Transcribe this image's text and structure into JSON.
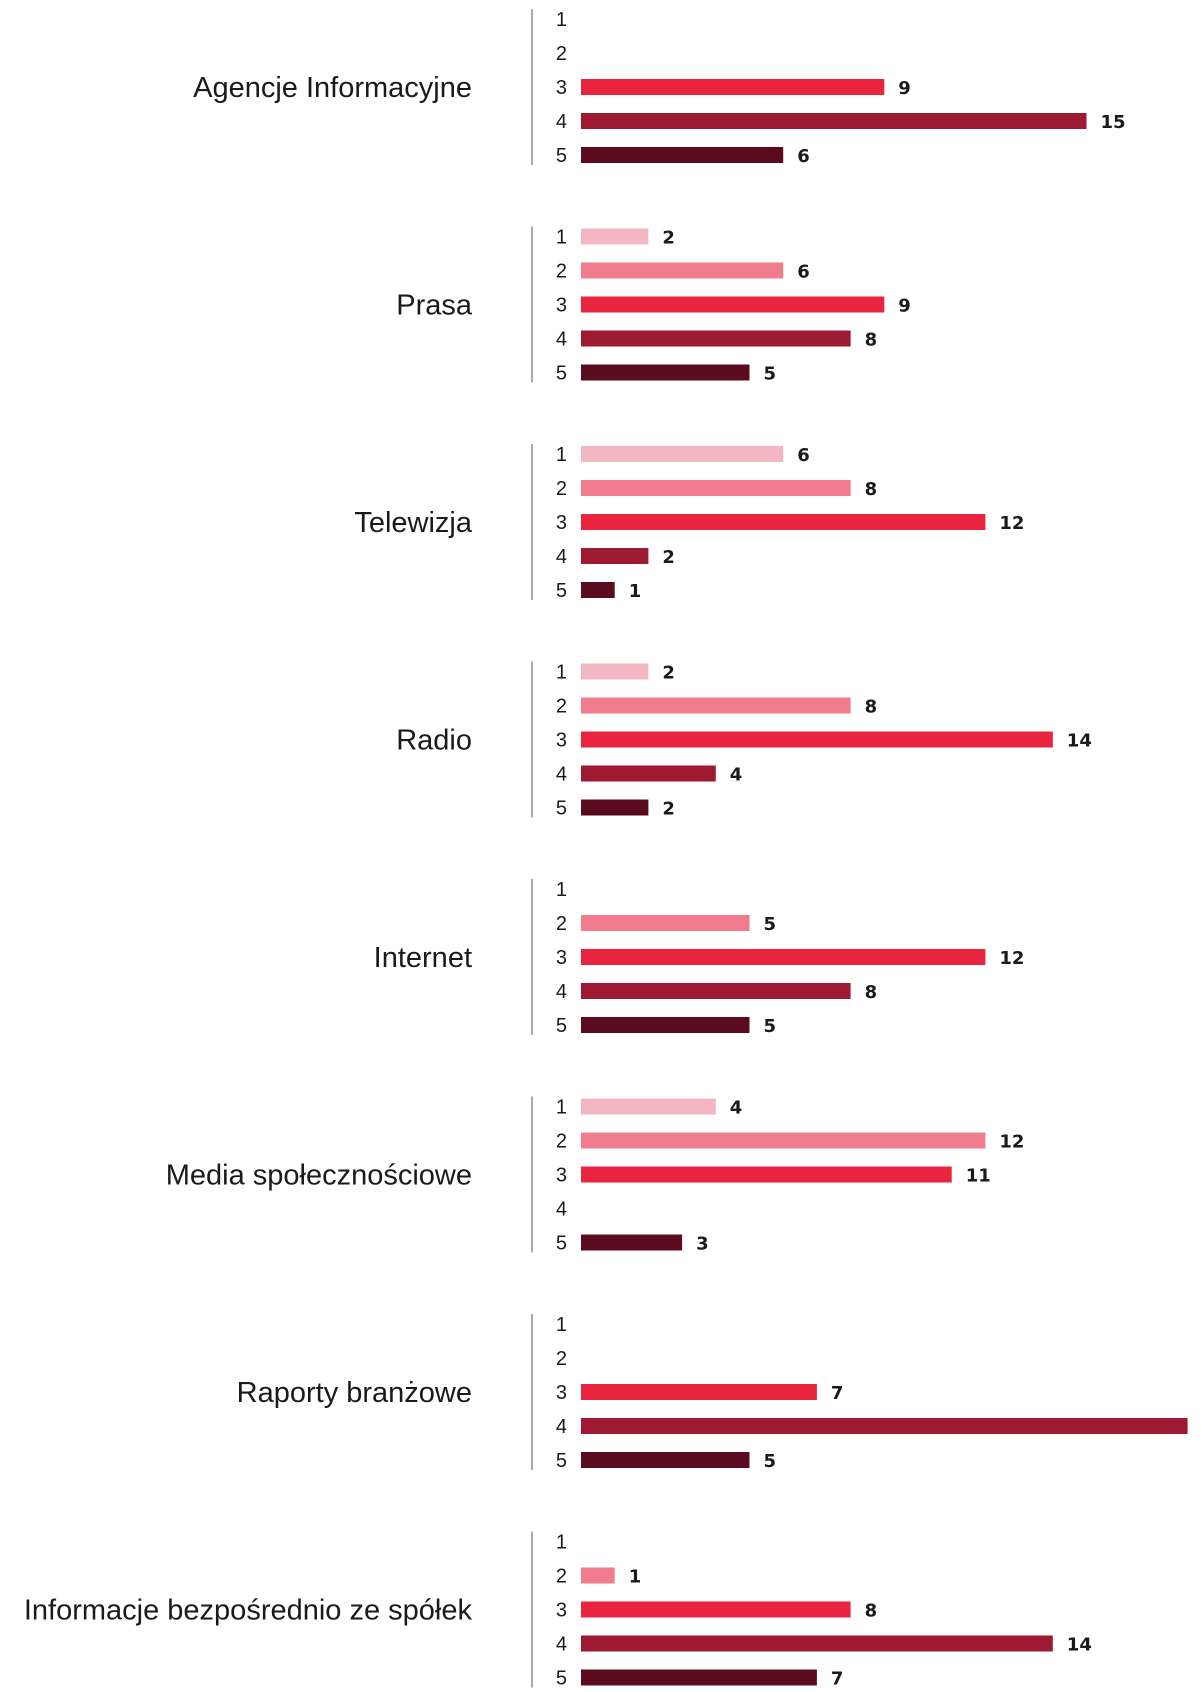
{
  "chart_data": {
    "type": "bar",
    "orientation": "horizontal",
    "levels": [
      "1",
      "2",
      "3",
      "4",
      "5"
    ],
    "level_colors": [
      "#f2b7c1",
      "#f07c8d",
      "#e8243f",
      "#9e1a33",
      "#5a0b1d"
    ],
    "groups": [
      {
        "label": "Agencje Informacyjne",
        "values": [
          null,
          null,
          9,
          15,
          6
        ]
      },
      {
        "label": "Prasa",
        "values": [
          2,
          6,
          9,
          8,
          5
        ]
      },
      {
        "label": "Telewizja",
        "values": [
          6,
          8,
          12,
          2,
          1
        ]
      },
      {
        "label": "Radio",
        "values": [
          2,
          8,
          14,
          4,
          2
        ]
      },
      {
        "label": "Internet",
        "values": [
          null,
          5,
          12,
          8,
          5
        ]
      },
      {
        "label": "Media społecznościowe",
        "values": [
          4,
          12,
          11,
          null,
          3
        ]
      },
      {
        "label": "Raporty branżowe",
        "values": [
          null,
          null,
          7,
          18,
          5
        ]
      },
      {
        "label": "Informacje bezpośrednio ze spółek",
        "values": [
          null,
          1,
          8,
          14,
          7
        ]
      }
    ],
    "xlim": [
      0,
      18
    ],
    "grid": false,
    "legend": "none"
  }
}
